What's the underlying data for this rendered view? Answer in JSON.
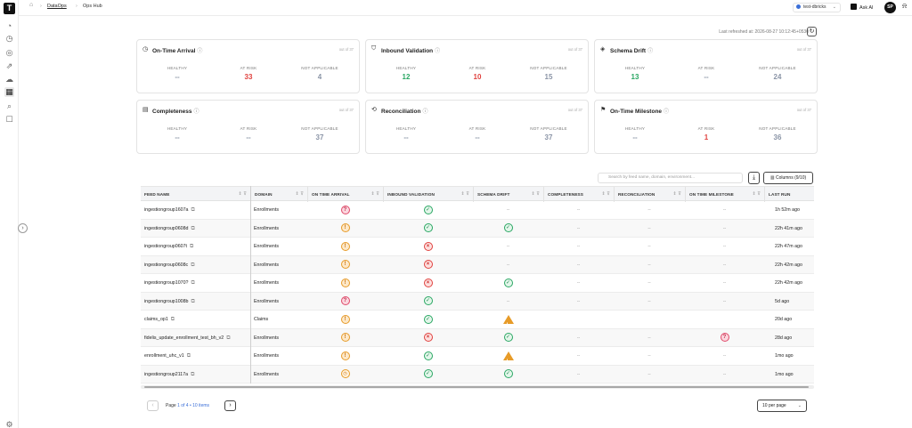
{
  "breadcrumb": {
    "home": "⌂",
    "section": "DataOps",
    "page": "Ops Hub"
  },
  "topbar": {
    "user_select": "test-dbricks",
    "ask_ai": "Ask AI",
    "avatar": "SP"
  },
  "last_refreshed": "Last refreshed at: 2026-08-27 10:12:45+0530",
  "cards": [
    {
      "title": "On-Time Arrival",
      "icon": "clock-icon",
      "out_of": "out of 37",
      "healthy": "--",
      "at_risk": "33",
      "not_applicable": "4"
    },
    {
      "title": "Inbound Validation",
      "icon": "shield-icon",
      "out_of": "out of 37",
      "healthy": "12",
      "at_risk": "10",
      "not_applicable": "15"
    },
    {
      "title": "Schema Drift",
      "icon": "layers-icon",
      "out_of": "out of 37",
      "healthy": "13",
      "at_risk": "--",
      "not_applicable": "24"
    },
    {
      "title": "Completeness",
      "icon": "clipboard-icon",
      "out_of": "out of 37",
      "healthy": "--",
      "at_risk": "--",
      "not_applicable": "37"
    },
    {
      "title": "Reconciliation",
      "icon": "reconcile-icon",
      "out_of": "out of 37",
      "healthy": "--",
      "at_risk": "--",
      "not_applicable": "37"
    },
    {
      "title": "On-Time Milestone",
      "icon": "flag-icon",
      "out_of": "out of 37",
      "healthy": "--",
      "at_risk": "1",
      "not_applicable": "36"
    }
  ],
  "card_labels": {
    "healthy": "HEALTHY",
    "at_risk": "AT RISK",
    "not_applicable": "NOT APPLICABLE"
  },
  "toolbar": {
    "search_placeholder": "Search by feed name, domain, environment...",
    "columns": "Columns (9/10)"
  },
  "table": {
    "headers": [
      "FEED NAME",
      "DOMAIN",
      "ON TIME ARRIVAL",
      "INBOUND VALIDATION",
      "SCHEMA DRIFT",
      "COMPLETENESS",
      "RECONCILIATION",
      "ON TIME MILESTONE",
      "LAST RUN"
    ],
    "rows": [
      {
        "feed": "ingestiongroup1607a",
        "domain": "Enrollments",
        "ota": "crit",
        "iv": "ok",
        "sd": "--",
        "comp": "--",
        "rec": "--",
        "otm": "--",
        "last_run": "1h 52m ago"
      },
      {
        "feed": "ingestiongroup0608d",
        "domain": "Enrollments",
        "ota": "warn",
        "iv": "ok",
        "sd": "ok",
        "comp": "--",
        "rec": "--",
        "otm": "--",
        "last_run": "22h 41m ago"
      },
      {
        "feed": "ingestiongroup0607t",
        "domain": "Enrollments",
        "ota": "warn",
        "iv": "err",
        "sd": "--",
        "comp": "--",
        "rec": "--",
        "otm": "--",
        "last_run": "22h 47m ago"
      },
      {
        "feed": "ingestiongroup0608c",
        "domain": "Enrollments",
        "ota": "warn",
        "iv": "err",
        "sd": "--",
        "comp": "--",
        "rec": "--",
        "otm": "--",
        "last_run": "22h 42m ago"
      },
      {
        "feed": "ingestiongroup1070?",
        "domain": "Enrollments",
        "ota": "warn",
        "iv": "err",
        "sd": "ok",
        "comp": "--",
        "rec": "--",
        "otm": "--",
        "last_run": "22h 42m ago"
      },
      {
        "feed": "ingestiongroup1008b",
        "domain": "Enrollments",
        "ota": "crit",
        "iv": "ok",
        "sd": "--",
        "comp": "--",
        "rec": "--",
        "otm": "--",
        "last_run": "5d ago"
      },
      {
        "feed": "claims_op1",
        "domain": "Claims",
        "ota": "warn",
        "iv": "ok",
        "sd": "alert",
        "comp": "",
        "rec": "",
        "otm": "",
        "last_run": "20d ago"
      },
      {
        "feed": "fidelis_update_enrollment_test_bh_v2",
        "domain": "Enrollments",
        "ota": "warn",
        "iv": "err",
        "sd": "ok",
        "comp": "--",
        "rec": "--",
        "otm": "crit",
        "last_run": "28d ago"
      },
      {
        "feed": "enrollment_uhc_v1",
        "domain": "Enrollments",
        "ota": "warn",
        "iv": "ok",
        "sd": "alert",
        "comp": "--",
        "rec": "--",
        "otm": "--",
        "last_run": "1mo ago"
      },
      {
        "feed": "ingestiongroup2117a",
        "domain": "Enrollments",
        "ota": "pend",
        "iv": "ok",
        "sd": "ok",
        "comp": "--",
        "rec": "--",
        "otm": "--",
        "last_run": "1mo ago"
      }
    ]
  },
  "pagination": {
    "page_label": "Page",
    "current": "1",
    "of": "of 4",
    "items": "• 10 items",
    "per_page": "10 per page"
  },
  "colors": {
    "healthy": "#2aa763",
    "at_risk": "#e0423f",
    "not_applicable": "#8a94a6",
    "warning": "#e79b28"
  }
}
